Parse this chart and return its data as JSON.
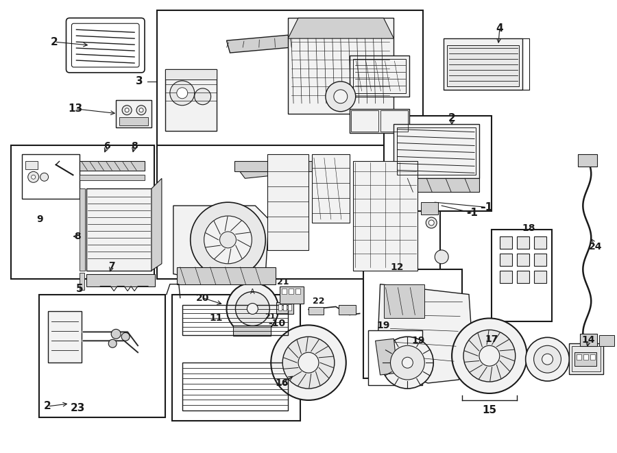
{
  "bg_color": "#ffffff",
  "fig_width": 9.0,
  "fig_height": 6.61,
  "dpi": 100,
  "line_color": "#1a1a1a",
  "gray1": "#e8e8e8",
  "gray2": "#d0d0d0",
  "gray3": "#f2f2f2"
}
